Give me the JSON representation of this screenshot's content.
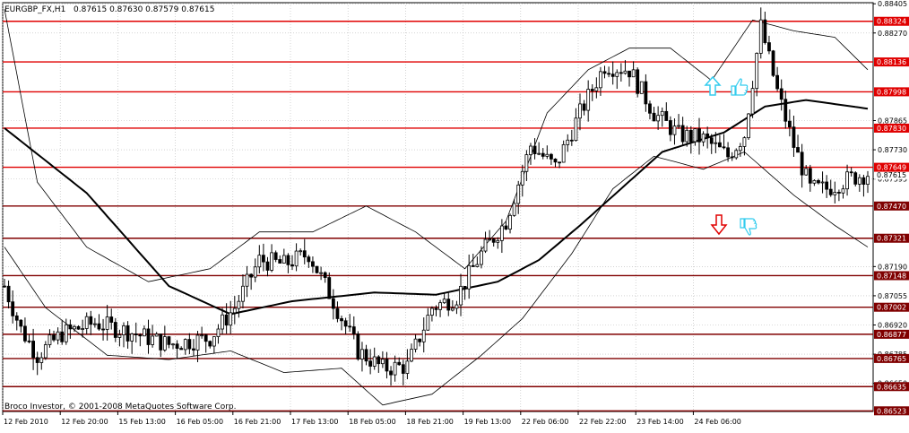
{
  "header": {
    "symbol_timeframe": "EURGBP_FX,H1",
    "ohlc": "0.87615 0.87630 0.87579 0.87615"
  },
  "copyright": "Broco Investor, © 2001-2008 MetaQuotes Software Corp.",
  "colors": {
    "background": "#ffffff",
    "grid": "#b8b8b8",
    "level_line": "#e00000",
    "dark_level_line": "#800000",
    "candle": "#000000",
    "moving_average": "#000000",
    "arrow_up": "#33ccee",
    "arrow_down": "#e00000",
    "hand_icon": "#33ccee"
  },
  "icons": {
    "up": "arrow-up-icon",
    "down": "arrow-down-icon",
    "thumbs_up": "thumbs-up-icon",
    "thumbs_down": "thumbs-down-icon"
  },
  "chart_data": {
    "type": "candlestick",
    "symbol": "EURGBP_FX",
    "timeframe": "H1",
    "ylim": [
      0.8652,
      0.8841
    ],
    "y_ticks": [
      "0.88405",
      "0.88270",
      "0.87865",
      "0.87730",
      "0.87595",
      "0.87190",
      "0.87055",
      "0.86920",
      "0.86785",
      "0.86650"
    ],
    "x_labels": [
      "12 Feb 2010",
      "12 Feb 20:00",
      "15 Feb 13:00",
      "16 Feb 05:00",
      "16 Feb 21:00",
      "17 Feb 13:00",
      "18 Feb 05:00",
      "18 Feb 21:00",
      "19 Feb 13:00",
      "22 Feb 06:00",
      "22 Feb 22:00",
      "23 Feb 14:00",
      "24 Feb 06:00"
    ],
    "levels": [
      {
        "label": "0.88324",
        "value": 0.88324,
        "style": "red"
      },
      {
        "label": "0.88136",
        "value": 0.88136,
        "style": "red"
      },
      {
        "label": "0.87998",
        "value": 0.87998,
        "style": "red"
      },
      {
        "label": "0.87830",
        "value": 0.8783,
        "style": "red"
      },
      {
        "label": "0.87649",
        "value": 0.87649,
        "style": "red"
      },
      {
        "label": "0.87470",
        "value": 0.8747,
        "style": "dark"
      },
      {
        "label": "0.87321",
        "value": 0.87321,
        "style": "dark"
      },
      {
        "label": "0.87148",
        "value": 0.87148,
        "style": "dark"
      },
      {
        "label": "0.87002",
        "value": 0.87002,
        "style": "dark"
      },
      {
        "label": "0.86877",
        "value": 0.86877,
        "style": "dark"
      },
      {
        "label": "0.86765",
        "value": 0.86765,
        "style": "dark"
      },
      {
        "label": "0.86635",
        "value": 0.86635,
        "style": "dark"
      },
      {
        "label": "0.86523",
        "value": 0.86523,
        "style": "dark"
      }
    ],
    "current_price": "0.87615",
    "close_anchors": [
      {
        "i": 0,
        "v": 0.871
      },
      {
        "i": 4,
        "v": 0.869
      },
      {
        "i": 8,
        "v": 0.8678
      },
      {
        "i": 14,
        "v": 0.8688
      },
      {
        "i": 22,
        "v": 0.8693
      },
      {
        "i": 30,
        "v": 0.8689
      },
      {
        "i": 40,
        "v": 0.8683
      },
      {
        "i": 50,
        "v": 0.8686
      },
      {
        "i": 56,
        "v": 0.87
      },
      {
        "i": 62,
        "v": 0.8722
      },
      {
        "i": 68,
        "v": 0.872
      },
      {
        "i": 74,
        "v": 0.8725
      },
      {
        "i": 80,
        "v": 0.8703
      },
      {
        "i": 86,
        "v": 0.868
      },
      {
        "i": 92,
        "v": 0.8672
      },
      {
        "i": 98,
        "v": 0.8673
      },
      {
        "i": 104,
        "v": 0.87
      },
      {
        "i": 110,
        "v": 0.8705
      },
      {
        "i": 116,
        "v": 0.8725
      },
      {
        "i": 122,
        "v": 0.874
      },
      {
        "i": 128,
        "v": 0.8775
      },
      {
        "i": 134,
        "v": 0.8765
      },
      {
        "i": 140,
        "v": 0.879
      },
      {
        "i": 146,
        "v": 0.8812
      },
      {
        "i": 152,
        "v": 0.881
      },
      {
        "i": 158,
        "v": 0.879
      },
      {
        "i": 164,
        "v": 0.878
      },
      {
        "i": 170,
        "v": 0.8778
      },
      {
        "i": 176,
        "v": 0.877
      },
      {
        "i": 180,
        "v": 0.878
      },
      {
        "i": 184,
        "v": 0.883
      },
      {
        "i": 188,
        "v": 0.88
      },
      {
        "i": 192,
        "v": 0.8775
      },
      {
        "i": 196,
        "v": 0.8755
      },
      {
        "i": 200,
        "v": 0.8755
      },
      {
        "i": 206,
        "v": 0.876
      },
      {
        "i": 210,
        "v": 0.8762
      }
    ],
    "moving_average": [
      {
        "i": 0,
        "v": 0.8783
      },
      {
        "i": 20,
        "v": 0.8753
      },
      {
        "i": 40,
        "v": 0.871
      },
      {
        "i": 55,
        "v": 0.8697
      },
      {
        "i": 70,
        "v": 0.8703
      },
      {
        "i": 90,
        "v": 0.8707
      },
      {
        "i": 105,
        "v": 0.8706
      },
      {
        "i": 120,
        "v": 0.8712
      },
      {
        "i": 130,
        "v": 0.8722
      },
      {
        "i": 140,
        "v": 0.8738
      },
      {
        "i": 150,
        "v": 0.8755
      },
      {
        "i": 160,
        "v": 0.8772
      },
      {
        "i": 175,
        "v": 0.8781
      },
      {
        "i": 185,
        "v": 0.8793
      },
      {
        "i": 195,
        "v": 0.8796
      },
      {
        "i": 210,
        "v": 0.8792
      }
    ],
    "bands_upper": [
      {
        "i": 0,
        "v": 0.8838
      },
      {
        "i": 8,
        "v": 0.8758
      },
      {
        "i": 20,
        "v": 0.8728
      },
      {
        "i": 35,
        "v": 0.8712
      },
      {
        "i": 50,
        "v": 0.8718
      },
      {
        "i": 62,
        "v": 0.8735
      },
      {
        "i": 75,
        "v": 0.8735
      },
      {
        "i": 88,
        "v": 0.8747
      },
      {
        "i": 100,
        "v": 0.8735
      },
      {
        "i": 112,
        "v": 0.8718
      },
      {
        "i": 122,
        "v": 0.874
      },
      {
        "i": 132,
        "v": 0.879
      },
      {
        "i": 142,
        "v": 0.881
      },
      {
        "i": 152,
        "v": 0.882
      },
      {
        "i": 162,
        "v": 0.882
      },
      {
        "i": 172,
        "v": 0.8805
      },
      {
        "i": 182,
        "v": 0.8833
      },
      {
        "i": 192,
        "v": 0.8828
      },
      {
        "i": 202,
        "v": 0.8825
      },
      {
        "i": 210,
        "v": 0.881
      }
    ],
    "bands_lower": [
      {
        "i": 0,
        "v": 0.8728
      },
      {
        "i": 10,
        "v": 0.87
      },
      {
        "i": 25,
        "v": 0.8678
      },
      {
        "i": 40,
        "v": 0.8676
      },
      {
        "i": 55,
        "v": 0.868
      },
      {
        "i": 68,
        "v": 0.867
      },
      {
        "i": 82,
        "v": 0.8672
      },
      {
        "i": 92,
        "v": 0.8655
      },
      {
        "i": 104,
        "v": 0.866
      },
      {
        "i": 116,
        "v": 0.8678
      },
      {
        "i": 126,
        "v": 0.8695
      },
      {
        "i": 138,
        "v": 0.8725
      },
      {
        "i": 148,
        "v": 0.8755
      },
      {
        "i": 158,
        "v": 0.877
      },
      {
        "i": 170,
        "v": 0.8764
      },
      {
        "i": 180,
        "v": 0.8772
      },
      {
        "i": 192,
        "v": 0.8752
      },
      {
        "i": 202,
        "v": 0.8738
      },
      {
        "i": 210,
        "v": 0.8728
      }
    ],
    "bars_count": 211
  }
}
